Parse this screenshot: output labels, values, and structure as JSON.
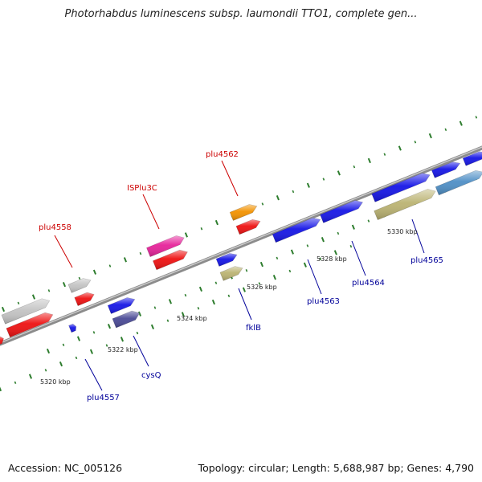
{
  "title": "Photorhabdus luminescens subsp. laumondii TTO1, complete gen...",
  "footer": {
    "accession": "Accession: NC_005126",
    "summary": "Topology: circular; Length: 5,688,987 bp; Genes: 4,790"
  },
  "scale_labels": [
    "5320 kbp",
    "5322 kbp",
    "5324 kbp",
    "5326 kbp",
    "5328 kbp",
    "5330 kbp"
  ],
  "gene_labels": {
    "forward": [
      "plu4558",
      "ISPlu3C",
      "plu4562"
    ],
    "reverse": [
      "plu4557",
      "cysQ",
      "fklB",
      "plu4563",
      "plu4564",
      "plu4565"
    ]
  },
  "colors": {
    "forward_label": "#cc0000",
    "reverse_label": "#000099",
    "backbone": "#8c8c8c",
    "tick": "#2e7d2e"
  }
}
